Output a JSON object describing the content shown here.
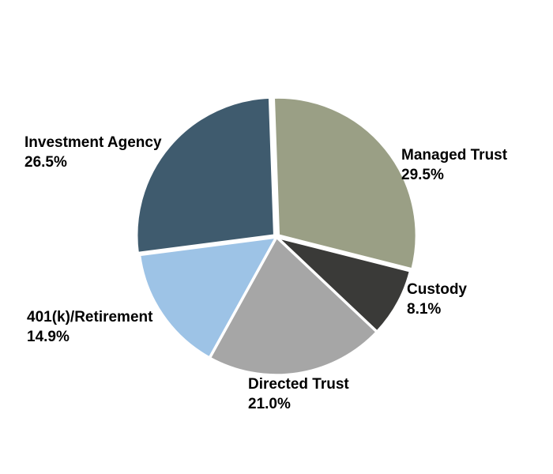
{
  "chart_data": {
    "type": "pie",
    "title": "",
    "legend": "none",
    "slices": [
      {
        "name": "Managed Trust",
        "value": 29.5,
        "label": "29.5%",
        "color": "#9a9f85"
      },
      {
        "name": "Custody",
        "value": 8.1,
        "label": "8.1%",
        "color": "#3a3a38"
      },
      {
        "name": "Directed Trust",
        "value": 21.0,
        "label": "21.0%",
        "color": "#a6a6a6"
      },
      {
        "name": "401(k)/Retirement",
        "value": 14.9,
        "label": "14.9%",
        "color": "#9dc3e6"
      },
      {
        "name": "Investment Agency",
        "value": 26.5,
        "label": "26.5%",
        "color": "#3f5b6e"
      }
    ]
  }
}
